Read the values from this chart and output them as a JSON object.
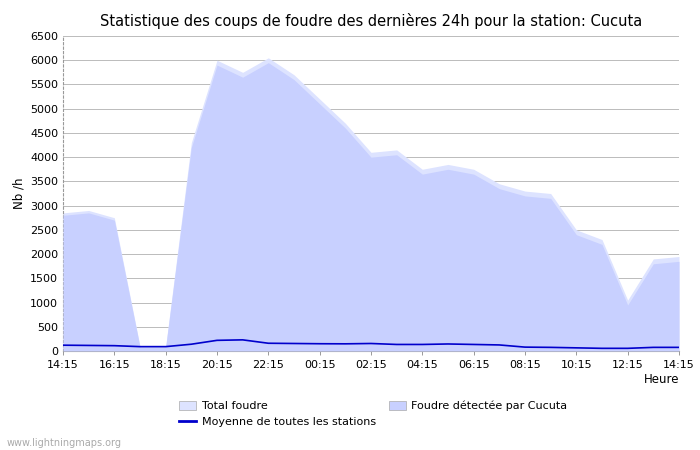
{
  "title": "Statistique des coups de foudre des dernières 24h pour la station: Cucuta",
  "xlabel": "Heure",
  "ylabel": "Nb /h",
  "watermark": "www.lightningmaps.org",
  "ylim": [
    0,
    6500
  ],
  "background_color": "#ffffff",
  "plot_bg_color": "#ffffff",
  "x_tick_labels": [
    "14:15",
    "16:15",
    "18:15",
    "20:15",
    "22:15",
    "00:15",
    "02:15",
    "04:15",
    "06:15",
    "08:15",
    "10:15",
    "12:15",
    "14:15"
  ],
  "total_foudre": [
    2850,
    2900,
    2750,
    100,
    100,
    4300,
    6000,
    5750,
    6050,
    5700,
    5200,
    4700,
    4100,
    4150,
    3750,
    3850,
    3750,
    3450,
    3300,
    3250,
    2500,
    2300,
    1050,
    1900,
    1950
  ],
  "foudre_cucuta": [
    2800,
    2850,
    2700,
    80,
    80,
    4200,
    5900,
    5650,
    5950,
    5600,
    5100,
    4600,
    4000,
    4050,
    3650,
    3750,
    3650,
    3350,
    3200,
    3150,
    2400,
    2200,
    950,
    1800,
    1850
  ],
  "moyenne": [
    120,
    115,
    110,
    90,
    90,
    140,
    220,
    230,
    160,
    155,
    150,
    148,
    155,
    135,
    135,
    145,
    135,
    125,
    80,
    75,
    65,
    55,
    55,
    75,
    75
  ],
  "total_foudre_color": "#dde3ff",
  "foudre_cucuta_color": "#c8d0ff",
  "moyenne_color": "#0000cc",
  "grid_color": "#bbbbbb",
  "title_fontsize": 10.5,
  "axis_fontsize": 8.5,
  "tick_fontsize": 8,
  "legend_fontsize": 8
}
